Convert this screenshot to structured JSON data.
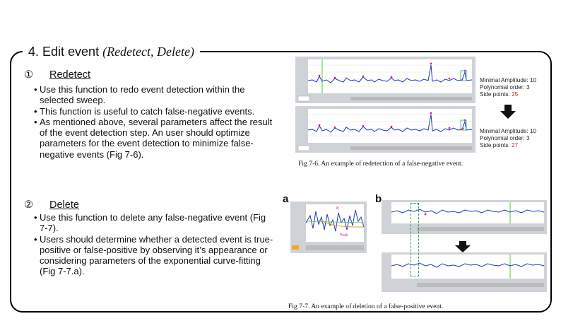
{
  "title": {
    "main": "4. Edit event ",
    "italic": "(Redetect, Delete)"
  },
  "redetect": {
    "number": "①",
    "heading": "Redetect",
    "bullets": [
      "Use this function to redo event detection within the selected sweep.",
      "This function is useful to catch false-negative events.",
      "As mentioned above, several parameters affect the result of the event detection step. An user should optimize parameters for the event detection to minimize false-negative events (Fig 7-6)."
    ]
  },
  "delete": {
    "number": "②",
    "heading": "Delete",
    "bullets": [
      "Use this function to delete any false-negative event (Fig 7-7).",
      "Users should determine whether a detected event is true-positive or false-positive by observing it’s appearance or considering parameters of the exponential curve-fitting (Fig 7-7.a)."
    ]
  },
  "fig76": {
    "params_before": {
      "amp": "Minimal Amplitude: ",
      "amp_val": "10",
      "poly": "Polynomial order: ",
      "poly_val": "3",
      "side": "Side points: ",
      "side_val": "25"
    },
    "params_after": {
      "amp": "Minimal Amplitude: ",
      "amp_val": "10",
      "poly": "Polynomial order: ",
      "poly_val": "3",
      "side": "Side points: ",
      "side_val": "27"
    },
    "caption": "Fig 7-6. An example of redetection of a false-negative event."
  },
  "fig77": {
    "label_a": "a",
    "label_b": "b",
    "peak_label": "Peak",
    "caption": "Fig 7-7. An example of deletion of a false-positive event."
  },
  "colors": {
    "trace": "#1f33c8",
    "event": "#e0207a",
    "marker": "#52c832",
    "fit": "#d9a21a"
  }
}
